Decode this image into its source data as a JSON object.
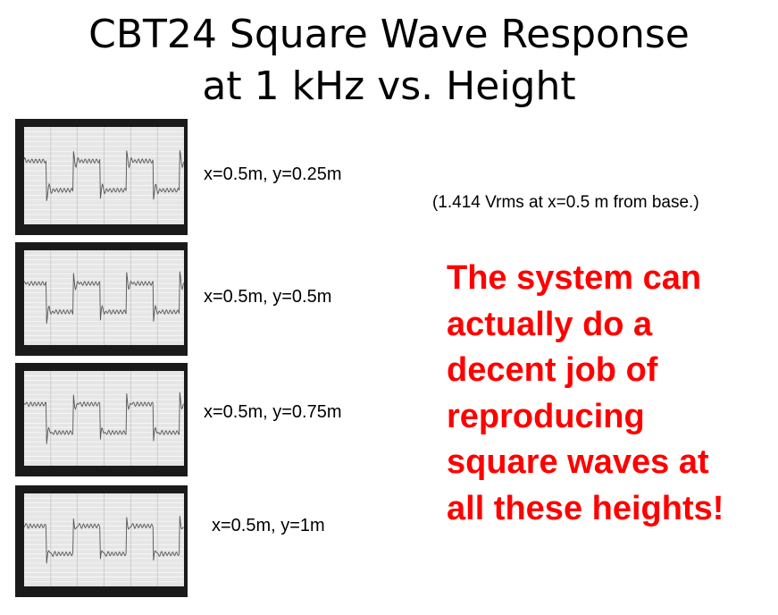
{
  "title": {
    "line1": "CBT24 Square Wave Response",
    "line2": "at 1 kHz vs. Height"
  },
  "note": "(1.414 Vrms at x=0.5 m from base.)",
  "conclusion": [
    "The system can",
    "actually do a",
    "decent job of",
    "reproducing",
    "square waves at",
    "all these heights!"
  ],
  "colors": {
    "conclusion": "#ff0000",
    "scope_bg": "#1a1a1a",
    "plot_bg": "#e6e6e6",
    "trace": "#555555"
  },
  "scopes": [
    {
      "label": "x=0.5m, y=0.25m"
    },
    {
      "label": "x=0.5m, y=0.5m"
    },
    {
      "label": "x=0.5m, y=0.75m"
    },
    {
      "label": "x=0.5m, y=1m"
    }
  ]
}
